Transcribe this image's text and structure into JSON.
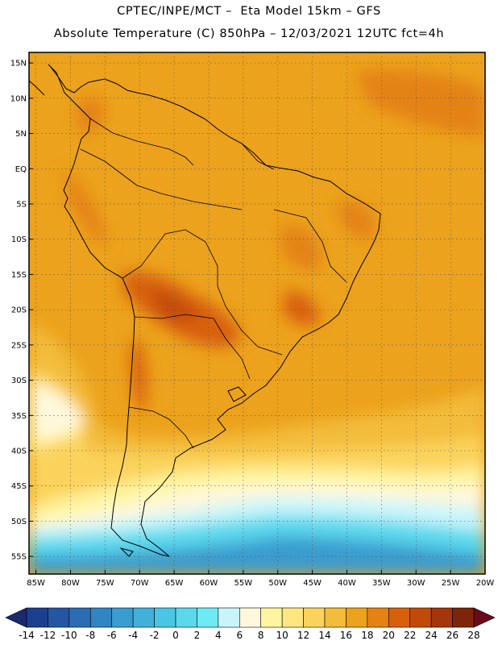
{
  "title": {
    "line1": "CPTEC/INPE/MCT –  Eta Model 15km – GFS",
    "line2": "Absolute Temperature (C) 850hPa – 12/03/2021 12UTC fct=4h"
  },
  "map": {
    "lat_labels": [
      "15N",
      "10N",
      "5N",
      "EQ",
      "5S",
      "10S",
      "15S",
      "20S",
      "25S",
      "30S",
      "35S",
      "40S",
      "45S",
      "50S",
      "55S"
    ],
    "lon_labels": [
      "85W",
      "80W",
      "75W",
      "70W",
      "65W",
      "60W",
      "55W",
      "50W",
      "45W",
      "40W",
      "35W",
      "30W",
      "25W",
      "20W"
    ],
    "lat_values": [
      15,
      10,
      5,
      0,
      -5,
      -10,
      -15,
      -20,
      -25,
      -30,
      -35,
      -40,
      -45,
      -50,
      -55
    ],
    "lon_values": [
      -85,
      -80,
      -75,
      -70,
      -65,
      -60,
      -55,
      -50,
      -45,
      -40,
      -35,
      -30,
      -25,
      -20
    ],
    "lat_range": [
      -57.5,
      16.5
    ],
    "lon_range": [
      -86,
      -20
    ],
    "grid": "dotted"
  },
  "colorbar": {
    "labels": [
      "-14",
      "-12",
      "-10",
      "-8",
      "-6",
      "-4",
      "-2",
      "0",
      "2",
      "4",
      "6",
      "8",
      "10",
      "12",
      "14",
      "16",
      "18",
      "20",
      "22",
      "24",
      "26",
      "28"
    ],
    "colors": [
      "#1c3f8f",
      "#2456a3",
      "#2c6cb3",
      "#3384c2",
      "#3a9ccf",
      "#42b1d9",
      "#4ac5e3",
      "#5ad8ec",
      "#6eeaf4",
      "#c8f5fb",
      "#fff8dc",
      "#fff5a0",
      "#ffe680",
      "#fbd35c",
      "#f3bc3a",
      "#eca21c",
      "#e48214",
      "#d8600c",
      "#c24a08",
      "#a3360a",
      "#7e2408"
    ],
    "under_color": "#1a2a6c",
    "over_color": "#6a0a1a"
  },
  "field_colors": {
    "deep_cold": "#3a9ccf",
    "cold": "#5ad8ec",
    "cool": "#c8f5fb",
    "mild": "#fff5a0",
    "warm_light": "#fbd35c",
    "warm": "#eca21c",
    "hot": "#e48214",
    "hotter": "#d8600c",
    "hottest": "#c24a08"
  }
}
